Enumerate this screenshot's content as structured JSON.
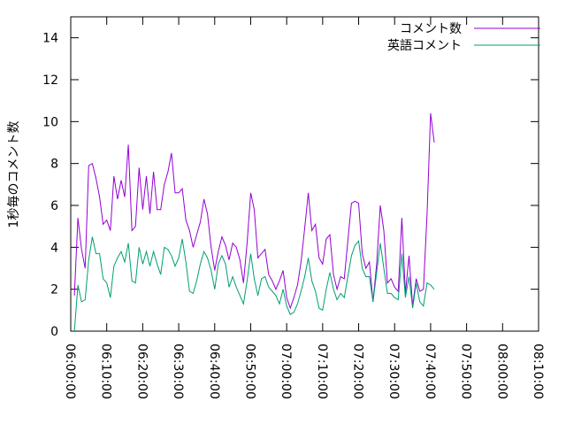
{
  "chart_data": {
    "type": "line",
    "title": "",
    "xlabel": "",
    "ylabel": "1秒毎のコメント数",
    "ylim": [
      0,
      15
    ],
    "xlim": [
      "06:00:00",
      "08:10:00"
    ],
    "yticks": [
      0,
      2,
      4,
      6,
      8,
      10,
      12,
      14
    ],
    "xticks": [
      "06:00:00",
      "06:10:00",
      "06:20:00",
      "06:30:00",
      "06:40:00",
      "06:50:00",
      "07:00:00",
      "07:10:00",
      "07:20:00",
      "07:30:00",
      "07:40:00",
      "07:50:00",
      "08:00:00",
      "08:10:00"
    ],
    "grid": false,
    "legend_position": "top-right",
    "x_step_minutes": 1,
    "series": [
      {
        "name": "コメント数",
        "color": "#9400d3",
        "x_start": "06:01:00",
        "values": [
          1.7,
          5.4,
          3.9,
          3.0,
          7.9,
          8.0,
          7.3,
          6.4,
          5.1,
          5.3,
          4.8,
          7.4,
          6.3,
          7.2,
          6.4,
          8.9,
          4.8,
          5.0,
          7.8,
          5.8,
          7.4,
          5.6,
          7.6,
          5.8,
          5.8,
          7.0,
          7.6,
          8.5,
          6.6,
          6.6,
          6.8,
          5.3,
          4.8,
          4.0,
          4.6,
          5.2,
          6.3,
          5.6,
          4.0,
          2.9,
          3.8,
          4.5,
          4.1,
          3.4,
          4.2,
          4.0,
          3.4,
          2.3,
          4.2,
          6.6,
          5.8,
          3.5,
          3.7,
          3.9,
          2.7,
          2.4,
          2.0,
          2.4,
          2.9,
          1.6,
          1.1,
          1.6,
          2.2,
          3.3,
          4.9,
          6.6,
          4.8,
          5.1,
          3.5,
          3.2,
          4.4,
          4.6,
          2.7,
          2.0,
          2.6,
          2.5,
          4.3,
          6.1,
          6.2,
          6.1,
          3.7,
          3.0,
          3.3,
          1.4,
          3.2,
          6.0,
          4.8,
          2.3,
          2.5,
          2.1,
          1.9,
          5.4,
          1.8,
          3.6,
          1.2,
          2.5,
          1.9,
          2.0,
          5.6,
          10.4,
          9.0
        ]
      },
      {
        "name": "英語コメント",
        "color": "#009e73",
        "x_start": "06:01:00",
        "values": [
          0.0,
          2.2,
          1.4,
          1.5,
          3.4,
          4.5,
          3.7,
          3.7,
          2.5,
          2.3,
          1.6,
          3.1,
          3.5,
          3.8,
          3.3,
          4.2,
          2.4,
          2.3,
          4.0,
          3.2,
          3.8,
          3.1,
          3.8,
          3.2,
          2.7,
          4.0,
          3.9,
          3.6,
          3.1,
          3.5,
          4.4,
          3.3,
          1.9,
          1.8,
          2.4,
          3.2,
          3.8,
          3.5,
          2.9,
          2.0,
          3.2,
          3.6,
          3.2,
          2.1,
          2.6,
          2.1,
          1.7,
          1.3,
          2.4,
          3.7,
          2.5,
          1.7,
          2.5,
          2.6,
          2.1,
          1.9,
          1.7,
          1.3,
          2.0,
          1.2,
          0.8,
          0.9,
          1.3,
          1.9,
          2.6,
          3.5,
          2.4,
          1.9,
          1.1,
          1.0,
          2.0,
          2.8,
          2.0,
          1.5,
          1.8,
          1.6,
          2.6,
          3.6,
          4.1,
          4.3,
          3.0,
          2.6,
          2.6,
          1.4,
          2.8,
          4.2,
          3.0,
          1.8,
          1.8,
          1.6,
          1.5,
          3.7,
          1.6,
          2.6,
          1.1,
          2.3,
          1.4,
          1.2,
          2.3,
          2.2,
          2.0
        ]
      }
    ]
  }
}
